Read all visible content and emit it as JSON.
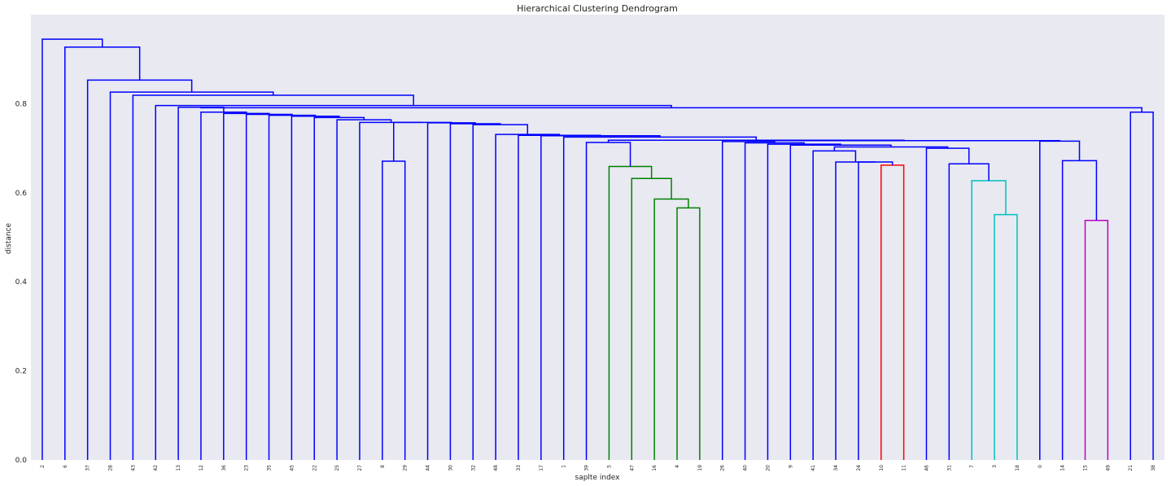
{
  "chart_data": {
    "type": "dendrogram",
    "title": "Hierarchical Clustering Dendrogram",
    "xlabel": "saplte index",
    "ylabel": "distance",
    "ylim": [
      0,
      1.0
    ],
    "yticks": [
      "0.0",
      "0.2",
      "0.4",
      "0.6",
      "0.8"
    ],
    "grid": false,
    "background": "#e8e9f1",
    "colors": {
      "blue": "#0000ff",
      "green": "#008000",
      "red": "#ff0000",
      "cyan": "#00bfbf",
      "magenta": "#bf00bf"
    },
    "leaves": [
      "2",
      "6",
      "37",
      "28",
      "43",
      "42",
      "13",
      "12",
      "36",
      "23",
      "35",
      "45",
      "22",
      "25",
      "27",
      "8",
      "29",
      "44",
      "30",
      "32",
      "48",
      "33",
      "17",
      "1",
      "39",
      "5",
      "47",
      "16",
      "4",
      "19",
      "26",
      "40",
      "20",
      "9",
      "41",
      "34",
      "24",
      "10",
      "11",
      "46",
      "31",
      "7",
      "3",
      "18",
      "0",
      "14",
      "15",
      "49",
      "21",
      "38"
    ],
    "merges": [
      {
        "a": "L15",
        "b": "L16",
        "h": 0.671,
        "c": "blue"
      },
      {
        "a": "L28",
        "b": "L29",
        "h": 0.566,
        "c": "green"
      },
      {
        "a": "L27",
        "b": "M1",
        "h": 0.586,
        "c": "green"
      },
      {
        "a": "L26",
        "b": "M2",
        "h": 0.632,
        "c": "green"
      },
      {
        "a": "L25",
        "b": "M3",
        "h": 0.659,
        "c": "green"
      },
      {
        "a": "L24",
        "b": "M4",
        "h": 0.713,
        "c": "blue"
      },
      {
        "a": "L37",
        "b": "L38",
        "h": 0.662,
        "c": "red"
      },
      {
        "a": "L36",
        "b": "M6",
        "h": 0.669,
        "c": "blue"
      },
      {
        "a": "L35",
        "b": "M7",
        "h": 0.669,
        "c": "blue"
      },
      {
        "a": "L34",
        "b": "M8",
        "h": 0.694,
        "c": "blue"
      },
      {
        "a": "L42",
        "b": "L43",
        "h": 0.551,
        "c": "cyan"
      },
      {
        "a": "L41",
        "b": "M10",
        "h": 0.627,
        "c": "cyan"
      },
      {
        "a": "L40",
        "b": "M11",
        "h": 0.665,
        "c": "blue"
      },
      {
        "a": "L39",
        "b": "M12",
        "h": 0.7,
        "c": "blue"
      },
      {
        "a": "M9",
        "b": "M13",
        "h": 0.703,
        "c": "blue"
      },
      {
        "a": "L33",
        "b": "M14",
        "h": 0.707,
        "c": "blue"
      },
      {
        "a": "L32",
        "b": "M15",
        "h": 0.709,
        "c": "blue"
      },
      {
        "a": "L31",
        "b": "M16",
        "h": 0.712,
        "c": "blue"
      },
      {
        "a": "L30",
        "b": "M17",
        "h": 0.715,
        "c": "blue"
      },
      {
        "a": "L46",
        "b": "L47",
        "h": 0.538,
        "c": "magenta"
      },
      {
        "a": "L45",
        "b": "M19",
        "h": 0.672,
        "c": "blue"
      },
      {
        "a": "L44",
        "b": "M20",
        "h": 0.716,
        "c": "blue"
      },
      {
        "a": "M18",
        "b": "M21",
        "h": 0.717,
        "c": "blue"
      },
      {
        "a": "M5",
        "b": "M22",
        "h": 0.718,
        "c": "blue"
      },
      {
        "a": "L23",
        "b": "M23",
        "h": 0.725,
        "c": "blue"
      },
      {
        "a": "L22",
        "b": "M24",
        "h": 0.728,
        "c": "blue"
      },
      {
        "a": "L21",
        "b": "M25",
        "h": 0.729,
        "c": "blue"
      },
      {
        "a": "L20",
        "b": "M26",
        "h": 0.731,
        "c": "blue"
      },
      {
        "a": "L19",
        "b": "M27",
        "h": 0.753,
        "c": "blue"
      },
      {
        "a": "L18",
        "b": "M28",
        "h": 0.755,
        "c": "blue"
      },
      {
        "a": "L17",
        "b": "M29",
        "h": 0.757,
        "c": "blue"
      },
      {
        "a": "M0",
        "b": "M30",
        "h": 0.758,
        "c": "blue"
      },
      {
        "a": "L14",
        "b": "M31",
        "h": 0.758,
        "c": "blue"
      },
      {
        "a": "L13",
        "b": "M32",
        "h": 0.764,
        "c": "blue"
      },
      {
        "a": "L12",
        "b": "M33",
        "h": 0.769,
        "c": "blue"
      },
      {
        "a": "L11",
        "b": "M34",
        "h": 0.772,
        "c": "blue"
      },
      {
        "a": "L10",
        "b": "M35",
        "h": 0.774,
        "c": "blue"
      },
      {
        "a": "L9",
        "b": "M36",
        "h": 0.776,
        "c": "blue"
      },
      {
        "a": "L8",
        "b": "M37",
        "h": 0.778,
        "c": "blue"
      },
      {
        "a": "L7",
        "b": "M38",
        "h": 0.781,
        "c": "blue"
      },
      {
        "a": "L6",
        "b": "M39",
        "h": 0.792,
        "c": "blue"
      },
      {
        "a": "L48",
        "b": "L49",
        "h": 0.781,
        "c": "blue"
      },
      {
        "a": "M40",
        "b": "M41",
        "h": 0.791,
        "c": "blue"
      },
      {
        "a": "L5",
        "b": "M42",
        "h": 0.796,
        "c": "blue"
      },
      {
        "a": "L4",
        "b": "M43",
        "h": 0.819,
        "c": "blue"
      },
      {
        "a": "L3",
        "b": "M44",
        "h": 0.826,
        "c": "blue"
      },
      {
        "a": "L2",
        "b": "M45",
        "h": 0.853,
        "c": "blue"
      },
      {
        "a": "L1",
        "b": "M46",
        "h": 0.927,
        "c": "blue"
      },
      {
        "a": "L0",
        "b": "M47",
        "h": 0.945,
        "c": "blue"
      }
    ]
  }
}
